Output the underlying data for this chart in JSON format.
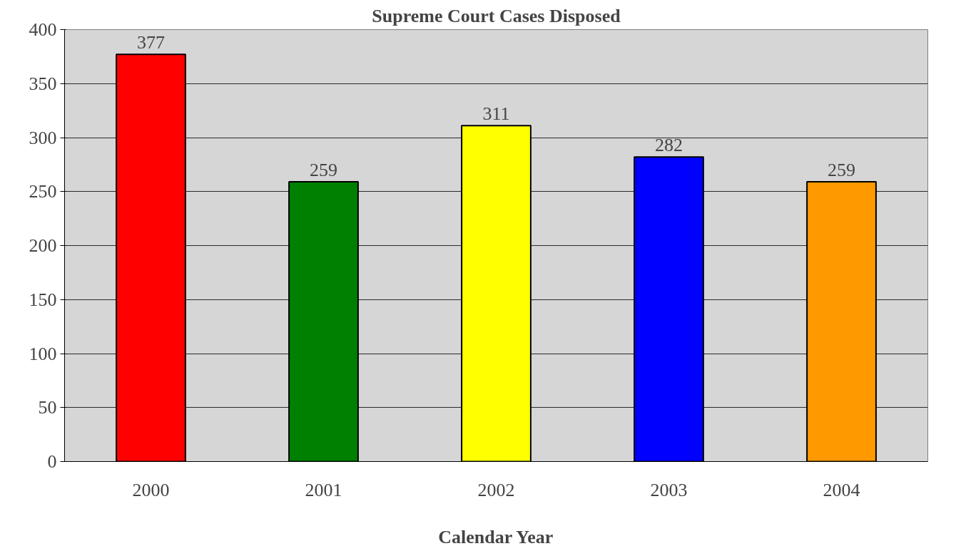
{
  "chart_data": {
    "type": "bar",
    "title": "Supreme Court Cases Disposed",
    "xlabel": "Calendar Year",
    "categories": [
      "2000",
      "2001",
      "2002",
      "2003",
      "2004"
    ],
    "values": [
      377,
      259,
      311,
      282,
      259
    ],
    "colors": [
      "#ff0000",
      "#008000",
      "#ffff00",
      "#0000ff",
      "#ff9900"
    ],
    "ylim": [
      0,
      400
    ],
    "yticks": [
      0,
      50,
      100,
      150,
      200,
      250,
      300,
      350,
      400
    ],
    "grid": "y",
    "data_labels": true
  }
}
